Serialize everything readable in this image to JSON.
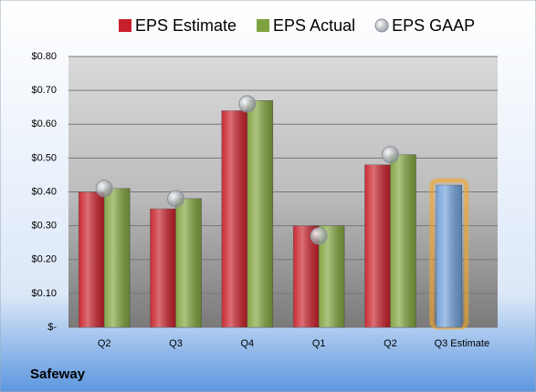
{
  "chart_data": {
    "type": "bar",
    "footer": "Safeway",
    "categories": [
      "Q2",
      "Q3",
      "Q4",
      "Q1",
      "Q2",
      "Q3 Estimate"
    ],
    "series": [
      {
        "name": "EPS Estimate",
        "color": "#c8202a",
        "values": [
          0.4,
          0.35,
          0.64,
          0.3,
          0.48,
          null
        ]
      },
      {
        "name": "EPS Actual",
        "color": "#7fa33c",
        "values": [
          0.41,
          0.38,
          0.67,
          0.3,
          0.51,
          null
        ]
      },
      {
        "name": "EPS GAAP",
        "type": "scatter",
        "color": "#a8aeb6",
        "values": [
          0.41,
          0.38,
          0.66,
          0.27,
          0.51,
          null
        ]
      },
      {
        "color": "#6f9fd8",
        "values": [
          null,
          null,
          null,
          null,
          null,
          0.42
        ]
      }
    ],
    "ylim": [
      0,
      0.8
    ],
    "yticks": [
      {
        "value": 0,
        "label": "$-"
      },
      {
        "value": 0.1,
        "label": "$0.10"
      },
      {
        "value": 0.2,
        "label": "$0.20"
      },
      {
        "value": 0.3,
        "label": "$0.30"
      },
      {
        "value": 0.4,
        "label": "$0.40"
      },
      {
        "value": 0.5,
        "label": "$0.50"
      },
      {
        "value": 0.6,
        "label": "$0.60"
      },
      {
        "value": 0.7,
        "label": "$0.70"
      },
      {
        "value": 0.8,
        "label": "$0.80"
      }
    ],
    "grid": true
  }
}
